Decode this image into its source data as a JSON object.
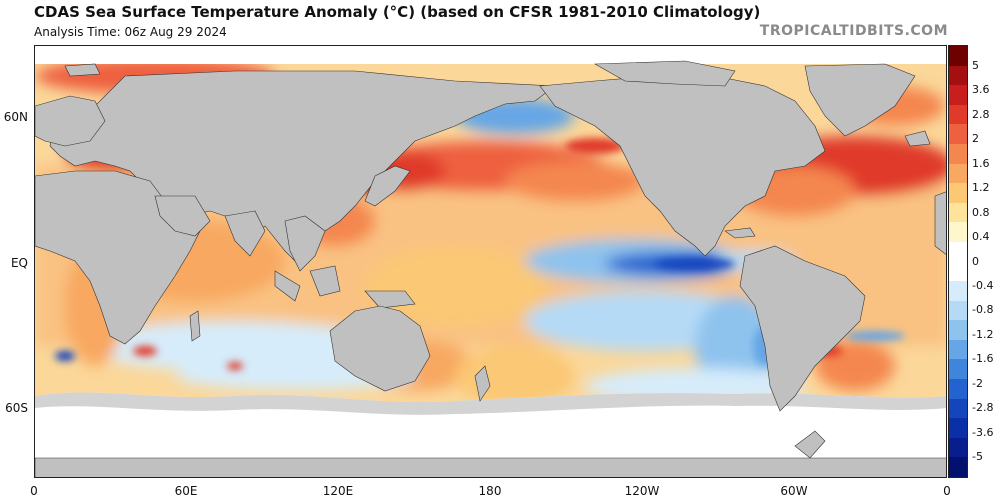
{
  "header": {
    "title": "CDAS Sea Surface Temperature Anomaly (°C) (based on CFSR 1981-2010 Climatology)",
    "subtitle": "Analysis Time: 06z Aug 29 2024",
    "brand": "TROPICALTIDBITS.COM"
  },
  "axes": {
    "lat_labels": [
      "60N",
      "EQ",
      "60S"
    ],
    "lon_labels": [
      "0",
      "60E",
      "120E",
      "180",
      "120W",
      "60W",
      "0"
    ]
  },
  "colorbar": {
    "labels": [
      "5",
      "3.6",
      "2.8",
      "2",
      "1.6",
      "1.2",
      "0.8",
      "0.4",
      "0",
      "-0.4",
      "-0.8",
      "-1.2",
      "-1.6",
      "-2",
      "-2.8",
      "-3.6",
      "-5"
    ],
    "colors": [
      "#6e0000",
      "#a50f0f",
      "#c81e1e",
      "#e03a2a",
      "#ee6140",
      "#f4874f",
      "#f8a861",
      "#fbc874",
      "#fde49a",
      "#fff7cc",
      "#ffffff",
      "#ffffff",
      "#d6ecfb",
      "#b5daf6",
      "#8ec3ee",
      "#66a6e6",
      "#3f85dc",
      "#2463cf",
      "#1545bd",
      "#0b2fa6",
      "#071e8c",
      "#03106e"
    ]
  },
  "colors": {
    "land": "#c0c0c0",
    "ice": "#ffffff",
    "warm_strong": "#e03a2a",
    "warm": "#f4874f",
    "warm_light": "#fbc874",
    "cool_light": "#b5daf6",
    "cool": "#3f85dc",
    "cool_strong": "#1545bd"
  }
}
